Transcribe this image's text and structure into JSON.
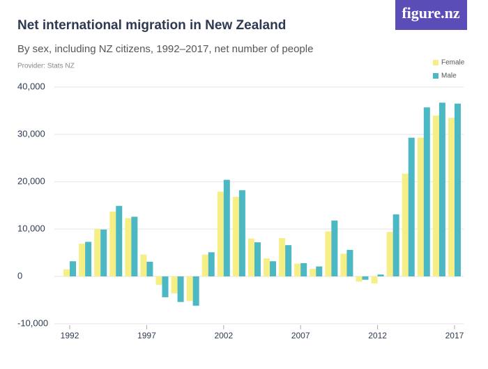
{
  "logo": "figure.nz",
  "chart_data": {
    "type": "bar",
    "title": "Net international migration in New Zealand",
    "subtitle": "By sex, including NZ citizens, 1992–2017, net number of people",
    "provider": "Provider: Stats NZ",
    "categories": [
      "1992",
      null,
      null,
      null,
      null,
      "1997",
      null,
      null,
      null,
      null,
      "2002",
      null,
      null,
      null,
      null,
      "2007",
      null,
      null,
      null,
      null,
      "2012",
      null,
      null,
      null,
      null,
      "2017"
    ],
    "series": [
      {
        "name": "Female",
        "color": "#f6ef86",
        "values": [
          1500,
          6900,
          10000,
          13700,
          12300,
          4600,
          -1800,
          -3600,
          -5200,
          4600,
          17900,
          16800,
          8000,
          3800,
          8100,
          2700,
          1600,
          9500,
          4800,
          -1100,
          -1500,
          9400,
          21700,
          29300,
          34000,
          33500
        ]
      },
      {
        "name": "Male",
        "color": "#4cb8c3",
        "values": [
          3200,
          7300,
          9900,
          14900,
          12600,
          3100,
          -4400,
          -5400,
          -6200,
          5100,
          20400,
          18200,
          7200,
          3200,
          6600,
          2800,
          2100,
          11800,
          5600,
          -700,
          400,
          13100,
          29300,
          35700,
          36700,
          36500
        ]
      }
    ],
    "ylim": [
      -10000,
      40000
    ],
    "yticks": [
      {
        "value": -10000,
        "label": "-10,000"
      },
      0,
      {
        "value": 10000,
        "label": "10,000"
      },
      {
        "value": 20000,
        "label": "20,000"
      },
      {
        "value": 30000,
        "label": "30,000"
      },
      {
        "value": 40000,
        "label": "40,000"
      }
    ],
    "grid": true,
    "legend": "top-right"
  }
}
